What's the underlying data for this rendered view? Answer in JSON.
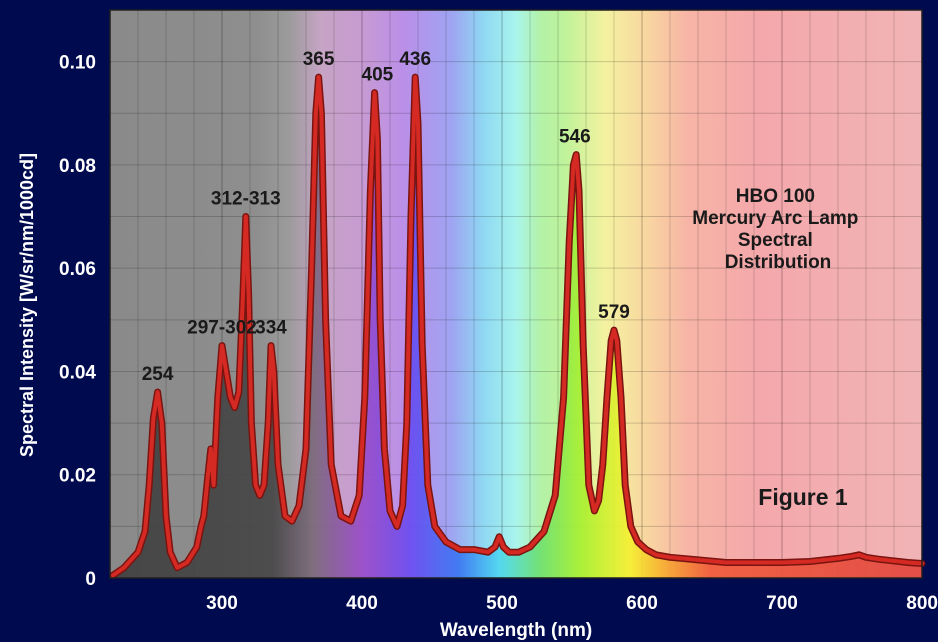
{
  "chart_data": {
    "type": "line",
    "xlabel": "Wavelength (nm)",
    "ylabel": "Spectral Intensity [W/sr/nm/1000cd]",
    "xlim": [
      220,
      800
    ],
    "ylim": [
      0,
      0.11
    ],
    "x_ticks": [
      "300",
      "400",
      "500",
      "600",
      "700",
      "800"
    ],
    "x_tick_values": [
      300,
      400,
      500,
      600,
      700,
      800
    ],
    "y_ticks": [
      "0",
      "0.02",
      "0.04",
      "0.06",
      "0.08",
      "0.10"
    ],
    "y_tick_values": [
      0,
      0.02,
      0.04,
      0.06,
      0.08,
      0.1
    ],
    "grid": true,
    "annotation_title": [
      "HBO 100",
      "Mercury Arc Lamp",
      "Spectral",
      "Distribution"
    ],
    "figure_label": "Figure 1",
    "line_color": "#d42a23",
    "peak_labels": [
      {
        "text": "254",
        "x": 254,
        "y": 0.036
      },
      {
        "text": "297-302",
        "x": 300,
        "y": 0.045
      },
      {
        "text": "312-313",
        "x": 317,
        "y": 0.07
      },
      {
        "text": "334",
        "x": 335,
        "y": 0.045
      },
      {
        "text": "365",
        "x": 369,
        "y": 0.097
      },
      {
        "text": "405",
        "x": 411,
        "y": 0.094
      },
      {
        "text": "436",
        "x": 438,
        "y": 0.097
      },
      {
        "text": "546",
        "x": 552,
        "y": 0.082
      },
      {
        "text": "579",
        "x": 580,
        "y": 0.048
      }
    ],
    "series": [
      {
        "x": [
          222,
          230,
          240,
          245,
          248,
          251,
          254,
          257,
          260,
          263,
          268,
          275,
          282,
          285,
          287,
          290,
          292,
          294,
          297,
          300,
          303,
          306,
          309,
          312,
          315,
          317,
          319,
          321,
          324,
          327,
          330,
          333,
          335,
          337,
          340,
          345,
          350,
          355,
          360,
          364,
          367,
          369,
          371,
          374,
          378,
          385,
          392,
          398,
          402,
          406,
          409,
          411,
          413,
          416,
          420,
          425,
          429,
          432,
          435,
          438,
          440,
          443,
          447,
          452,
          460,
          470,
          480,
          490,
          495,
          498,
          501,
          505,
          512,
          520,
          530,
          538,
          544,
          548,
          551,
          553,
          555,
          558,
          562,
          566,
          569,
          572,
          575,
          578,
          580,
          582,
          585,
          588,
          592,
          597,
          603,
          610,
          620,
          640,
          660,
          680,
          700,
          720,
          740,
          750,
          755,
          760,
          770,
          790,
          800
        ],
        "y": [
          0.0005,
          0.002,
          0.005,
          0.009,
          0.018,
          0.031,
          0.036,
          0.03,
          0.012,
          0.005,
          0.002,
          0.003,
          0.006,
          0.01,
          0.012,
          0.02,
          0.025,
          0.018,
          0.035,
          0.045,
          0.04,
          0.035,
          0.033,
          0.036,
          0.055,
          0.07,
          0.055,
          0.03,
          0.018,
          0.016,
          0.018,
          0.03,
          0.045,
          0.04,
          0.022,
          0.012,
          0.011,
          0.014,
          0.025,
          0.06,
          0.09,
          0.097,
          0.09,
          0.05,
          0.022,
          0.012,
          0.011,
          0.016,
          0.035,
          0.075,
          0.094,
          0.085,
          0.05,
          0.025,
          0.013,
          0.01,
          0.014,
          0.03,
          0.07,
          0.097,
          0.088,
          0.045,
          0.018,
          0.01,
          0.007,
          0.0055,
          0.0055,
          0.005,
          0.006,
          0.008,
          0.006,
          0.005,
          0.005,
          0.006,
          0.009,
          0.016,
          0.035,
          0.065,
          0.08,
          0.082,
          0.075,
          0.045,
          0.018,
          0.013,
          0.015,
          0.022,
          0.035,
          0.046,
          0.048,
          0.046,
          0.035,
          0.018,
          0.01,
          0.007,
          0.0055,
          0.0045,
          0.004,
          0.0035,
          0.003,
          0.003,
          0.003,
          0.0032,
          0.0038,
          0.0042,
          0.0045,
          0.004,
          0.0036,
          0.003,
          0.0028
        ]
      }
    ]
  }
}
